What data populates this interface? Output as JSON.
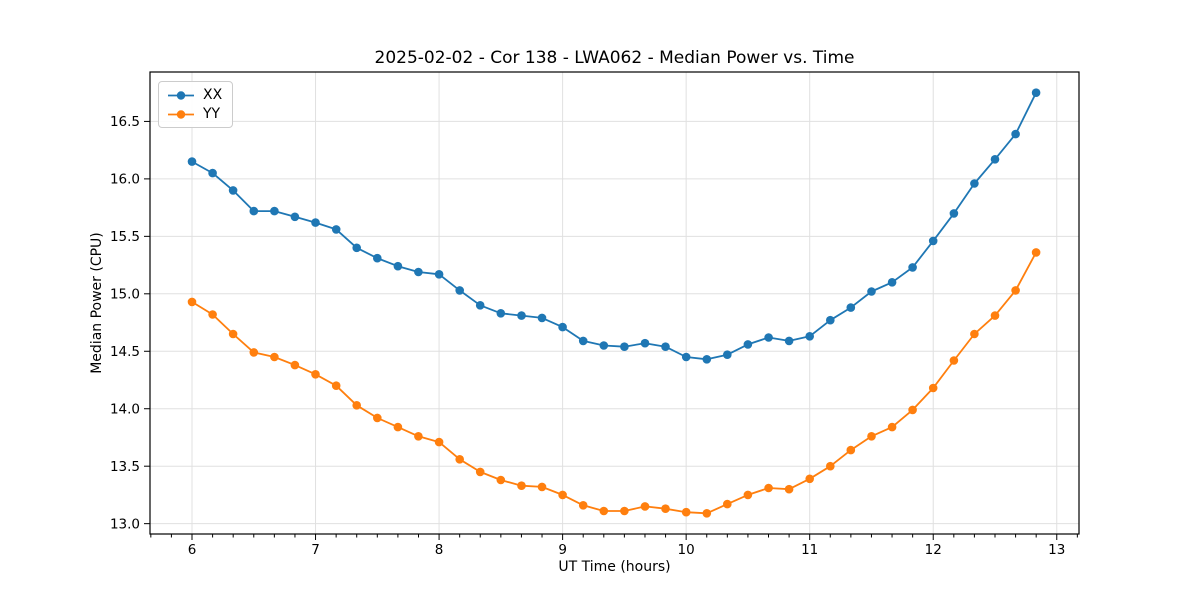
{
  "chart_data": {
    "type": "line",
    "title": "2025-02-02 - Cor 138 - LWA062 - Median Power vs. Time",
    "xlabel": "UT Time (hours)",
    "ylabel": "Median Power (CPU)",
    "xlim": [
      5.66,
      13.18
    ],
    "ylim": [
      12.91,
      16.93
    ],
    "xticks": [
      6,
      7,
      8,
      9,
      10,
      11,
      12,
      13
    ],
    "xtick_labels": [
      "6",
      "7",
      "8",
      "9",
      "10",
      "11",
      "12",
      "13"
    ],
    "x_minor_step": 0.1666667,
    "yticks": [
      13.0,
      13.5,
      14.0,
      14.5,
      15.0,
      15.5,
      16.0,
      16.5
    ],
    "ytick_labels": [
      "13.0",
      "13.5",
      "14.0",
      "14.5",
      "15.0",
      "15.5",
      "16.0",
      "16.5"
    ],
    "grid": true,
    "grid_color": "#e0e0e0",
    "legend_position": "upper left",
    "marker": "circle",
    "x": [
      6.0,
      6.167,
      6.333,
      6.5,
      6.667,
      6.833,
      7.0,
      7.167,
      7.333,
      7.5,
      7.667,
      7.833,
      8.0,
      8.167,
      8.333,
      8.5,
      8.667,
      8.833,
      9.0,
      9.167,
      9.333,
      9.5,
      9.667,
      9.833,
      10.0,
      10.167,
      10.333,
      10.5,
      10.667,
      10.833,
      11.0,
      11.167,
      11.333,
      11.5,
      11.667,
      11.833,
      12.0,
      12.167,
      12.333,
      12.5,
      12.667,
      12.833
    ],
    "series": [
      {
        "name": "XX",
        "color": "#1f77b4",
        "values": [
          16.15,
          16.05,
          15.9,
          15.72,
          15.72,
          15.67,
          15.62,
          15.56,
          15.4,
          15.31,
          15.24,
          15.19,
          15.17,
          15.03,
          14.9,
          14.83,
          14.81,
          14.79,
          14.71,
          14.59,
          14.55,
          14.54,
          14.57,
          14.54,
          14.45,
          14.43,
          14.47,
          14.56,
          14.62,
          14.59,
          14.63,
          14.77,
          14.88,
          15.02,
          15.1,
          15.23,
          15.46,
          15.7,
          15.96,
          16.17,
          16.39,
          16.75
        ]
      },
      {
        "name": "YY",
        "color": "#ff7f0e",
        "values": [
          14.93,
          14.82,
          14.65,
          14.49,
          14.45,
          14.38,
          14.3,
          14.2,
          14.03,
          13.92,
          13.84,
          13.76,
          13.71,
          13.56,
          13.45,
          13.38,
          13.33,
          13.32,
          13.25,
          13.16,
          13.11,
          13.11,
          13.15,
          13.13,
          13.1,
          13.09,
          13.17,
          13.25,
          13.31,
          13.3,
          13.39,
          13.5,
          13.64,
          13.76,
          13.84,
          13.99,
          14.18,
          14.42,
          14.65,
          14.81,
          15.03,
          15.36
        ]
      }
    ]
  }
}
